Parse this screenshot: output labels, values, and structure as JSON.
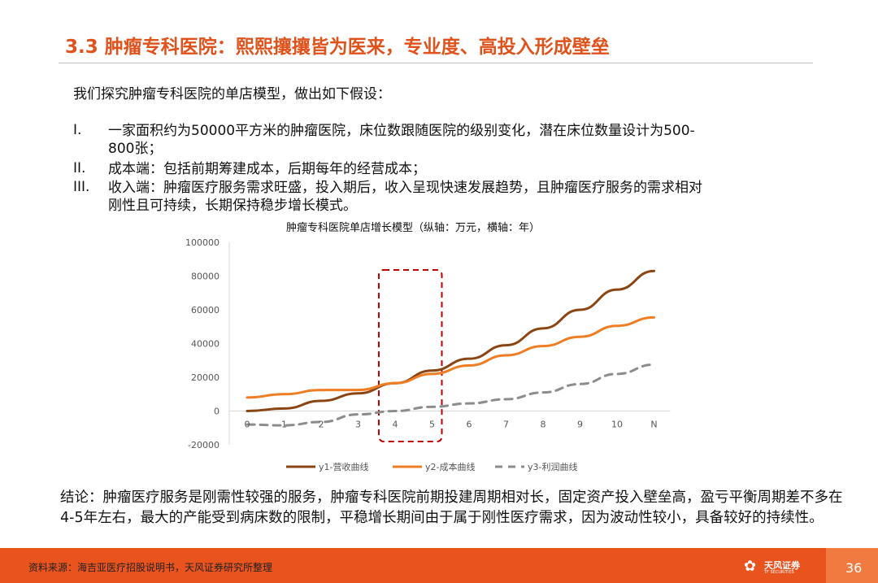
{
  "header": {
    "title": "3.3 肿瘤专科医院：熙熙攘攘皆为医来，专业度、高投入形成壁垒"
  },
  "intro": "我们探究肿瘤专科医院的单店模型，做出如下假设：",
  "assumptions": [
    {
      "num": "I.",
      "lines": [
        "一家面积约为50000平方米的肿瘤医院，床位数跟随医院的级别变化，潜在床位数量设计为500-",
        "800张；"
      ]
    },
    {
      "num": "II.",
      "lines": [
        "成本端：包括前期筹建成本，后期每年的经营成本；"
      ]
    },
    {
      "num": "III.",
      "lines": [
        "收入端：肿瘤医疗服务需求旺盛，投入期后，收入呈现快速发展趋势，且肿瘤医疗服务的需求相对",
        "刚性且可持续，长期保持稳步增长模式。"
      ]
    }
  ],
  "chart_data": {
    "type": "line",
    "title": "肿瘤专科医院单店增长模型（纵轴：万元，横轴：年）",
    "categories": [
      "0",
      "1",
      "2",
      "3",
      "4",
      "5",
      "6",
      "7",
      "8",
      "9",
      "10",
      "N"
    ],
    "ylim": [
      -20000,
      100000
    ],
    "yticks": [
      "100000",
      "80000",
      "60000",
      "40000",
      "20000",
      "0",
      "-20000"
    ],
    "ytick_values": [
      100000,
      80000,
      60000,
      40000,
      20000,
      0,
      -20000
    ],
    "grid": false,
    "legend_position": "bottom",
    "highlight_box": [
      "4",
      "5"
    ],
    "series": [
      {
        "name": "y1-营收曲线",
        "color": "#8b4513",
        "dash": false,
        "values": [
          0,
          1500,
          6000,
          10500,
          16500,
          24000,
          31000,
          39000,
          49000,
          60000,
          72000,
          83000
        ]
      },
      {
        "name": "y2-成本曲线",
        "color": "#ee7d24",
        "dash": false,
        "values": [
          8000,
          10000,
          12500,
          12500,
          16500,
          22000,
          27000,
          33000,
          38500,
          44000,
          50500,
          55500
        ]
      },
      {
        "name": "y3-利润曲线",
        "color": "#8c8c8c",
        "dash": true,
        "values": [
          -8000,
          -8500,
          -6500,
          -2000,
          0,
          2500,
          4500,
          7000,
          11000,
          16000,
          22000,
          27500
        ]
      }
    ]
  },
  "conclusion": "结论：肿瘤医疗服务是刚需性较强的服务，肿瘤专科医院前期投建周期相对长，固定资产投入壁垒高，盈亏平衡周期差不多在4-5年左右，最大的产能受到病床数的限制，平稳增长期间由于属于刚性医疗需求，因为波动性较小，具备较好的持续性。",
  "footer": {
    "source": "资料来源：海吉亚医疗招股说明书，天风证券研究所整理",
    "logo_text": "天风证券",
    "logo_sub": "TF SECURITIES",
    "page_number": "36"
  }
}
